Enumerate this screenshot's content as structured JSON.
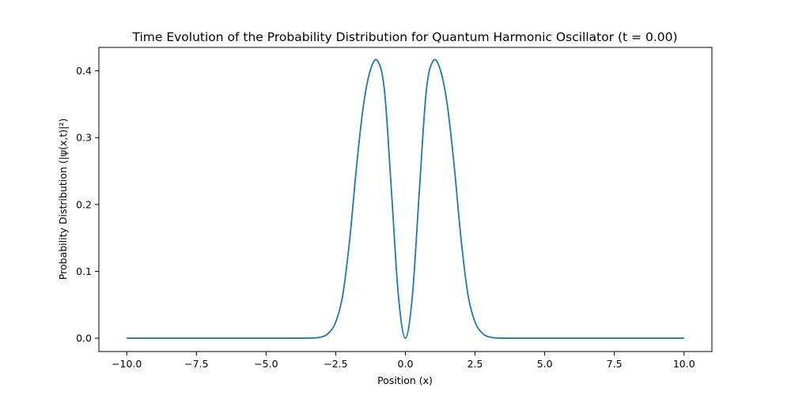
{
  "chart_data": {
    "type": "line",
    "title": "Time Evolution of the Probability Distribution for Quantum Harmonic Oscillator (t = 0.00)",
    "xlabel": "Position (x)",
    "ylabel": "Probability Distribution (|ψ(x,t)|²)",
    "xlim": [
      -11,
      11
    ],
    "ylim": [
      -0.02,
      0.435
    ],
    "x_ticks": [
      -10.0,
      -7.5,
      -5.0,
      -2.5,
      0.0,
      2.5,
      5.0,
      7.5,
      10.0
    ],
    "x_tick_labels": [
      "−10.0",
      "−7.5",
      "−5.0",
      "−2.5",
      "0.0",
      "2.5",
      "5.0",
      "7.5",
      "10.0"
    ],
    "y_ticks": [
      0.0,
      0.1,
      0.2,
      0.3,
      0.4
    ],
    "y_tick_labels": [
      "0.0",
      "0.1",
      "0.2",
      "0.3",
      "0.4"
    ],
    "grid": false,
    "legend": "none",
    "color": "#1f77b4",
    "series": [
      {
        "x": [
          -10.0,
          -5.0,
          -3.5,
          -3.0,
          -2.75,
          -2.5,
          -2.25,
          -2.0,
          -1.75,
          -1.5,
          -1.25,
          -1.0,
          -0.75,
          -0.5,
          -0.25,
          0.0,
          0.25,
          0.5,
          0.75,
          1.0,
          1.25,
          1.5,
          1.75,
          2.0,
          2.25,
          2.5,
          2.75,
          3.0,
          3.5,
          5.0,
          10.0
        ],
        "y": [
          0.0,
          0.0,
          0.0,
          0.002,
          0.008,
          0.024,
          0.064,
          0.147,
          0.258,
          0.35,
          0.402,
          0.415,
          0.37,
          0.22,
          0.063,
          0.0,
          0.063,
          0.22,
          0.37,
          0.415,
          0.402,
          0.35,
          0.258,
          0.147,
          0.064,
          0.024,
          0.008,
          0.002,
          0.0,
          0.0,
          0.0
        ]
      }
    ]
  }
}
